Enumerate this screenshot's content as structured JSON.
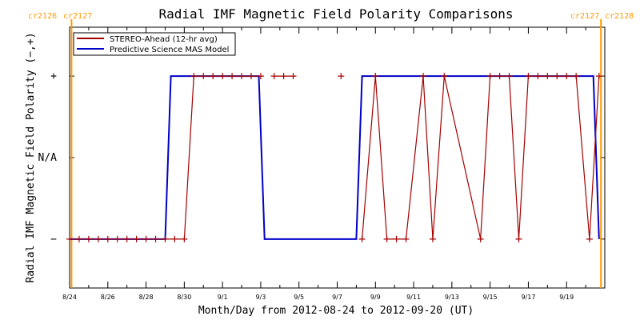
{
  "chart_data": {
    "type": "line",
    "title": "Radial IMF Magnetic Field Polarity Comparisons",
    "xlabel": "Month/Day from 2012-08-24 to 2012-09-20 (UT)",
    "ylabel": "Radial IMF Magnetic Field Polarity (−,+)",
    "x_range": [
      "2012-08-24",
      "2012-09-21"
    ],
    "y_ticks": [
      {
        "value": 1,
        "label": "+"
      },
      {
        "value": 0,
        "label": "N/A"
      },
      {
        "value": -1,
        "label": "−"
      }
    ],
    "ylim": [
      -1.6,
      1.6
    ],
    "x_ticks": [
      "8/24",
      "8/26",
      "8/28",
      "8/30",
      "9/1",
      "9/3",
      "9/5",
      "9/7",
      "9/9",
      "9/11",
      "9/13",
      "9/15",
      "9/17",
      "9/19"
    ],
    "x_tick_days": [
      0,
      2,
      4,
      6,
      8,
      10,
      12,
      14,
      16,
      18,
      20,
      22,
      24,
      26
    ],
    "carrington_markers": [
      {
        "day": 0.1,
        "labels": [
          "cr2126",
          "cr2127"
        ]
      },
      {
        "day": 27.8,
        "labels": [
          "cr2127",
          "cr2128"
        ]
      }
    ],
    "series": [
      {
        "name": "STEREO-Ahead (12-hr avg)",
        "color": "#a50000",
        "marker": "plus",
        "points": [
          [
            0.0,
            -1
          ],
          [
            0.5,
            -1
          ],
          [
            1.0,
            -1
          ],
          [
            1.5,
            -1
          ],
          [
            2.0,
            -1
          ],
          [
            2.5,
            -1
          ],
          [
            3.0,
            -1
          ],
          [
            3.5,
            -1
          ],
          [
            4.0,
            -1
          ],
          [
            4.5,
            -1
          ],
          [
            5.0,
            -1
          ],
          [
            5.5,
            -1
          ],
          [
            6.0,
            -1
          ],
          [
            6.5,
            1
          ],
          [
            7.0,
            1
          ],
          [
            7.5,
            1
          ],
          [
            8.0,
            1
          ],
          [
            8.5,
            1
          ],
          [
            9.0,
            1
          ],
          [
            9.5,
            1
          ],
          [
            10.0,
            1
          ],
          [
            10.5,
            null
          ],
          [
            10.7,
            1
          ],
          [
            11.2,
            1
          ],
          [
            11.7,
            1
          ],
          [
            12.5,
            null
          ],
          [
            14.2,
            1
          ],
          [
            15.0,
            null
          ],
          [
            15.3,
            -1
          ],
          [
            16.0,
            1
          ],
          [
            16.6,
            -1
          ],
          [
            17.1,
            -1
          ],
          [
            17.6,
            -1
          ],
          [
            18.5,
            1
          ],
          [
            19.0,
            -1
          ],
          [
            19.6,
            1
          ],
          [
            21.5,
            -1
          ],
          [
            22.0,
            1
          ],
          [
            22.5,
            1
          ],
          [
            23.0,
            1
          ],
          [
            23.5,
            -1
          ],
          [
            24.0,
            1
          ],
          [
            24.5,
            1
          ],
          [
            25.0,
            1
          ],
          [
            25.5,
            1
          ],
          [
            26.0,
            1
          ],
          [
            26.5,
            1
          ],
          [
            27.2,
            -1
          ],
          [
            27.7,
            1
          ]
        ]
      },
      {
        "name": "Predictive Science MAS Model",
        "color": "#0000c8",
        "marker": "none",
        "points": [
          [
            0.0,
            -1
          ],
          [
            5.0,
            -1
          ],
          [
            5.3,
            1
          ],
          [
            9.9,
            1
          ],
          [
            10.2,
            -1
          ],
          [
            15.0,
            -1
          ],
          [
            15.3,
            1
          ],
          [
            27.4,
            1
          ],
          [
            27.7,
            -1
          ]
        ]
      }
    ],
    "legend_position": "top-left",
    "marker_color": "#ff9900"
  }
}
